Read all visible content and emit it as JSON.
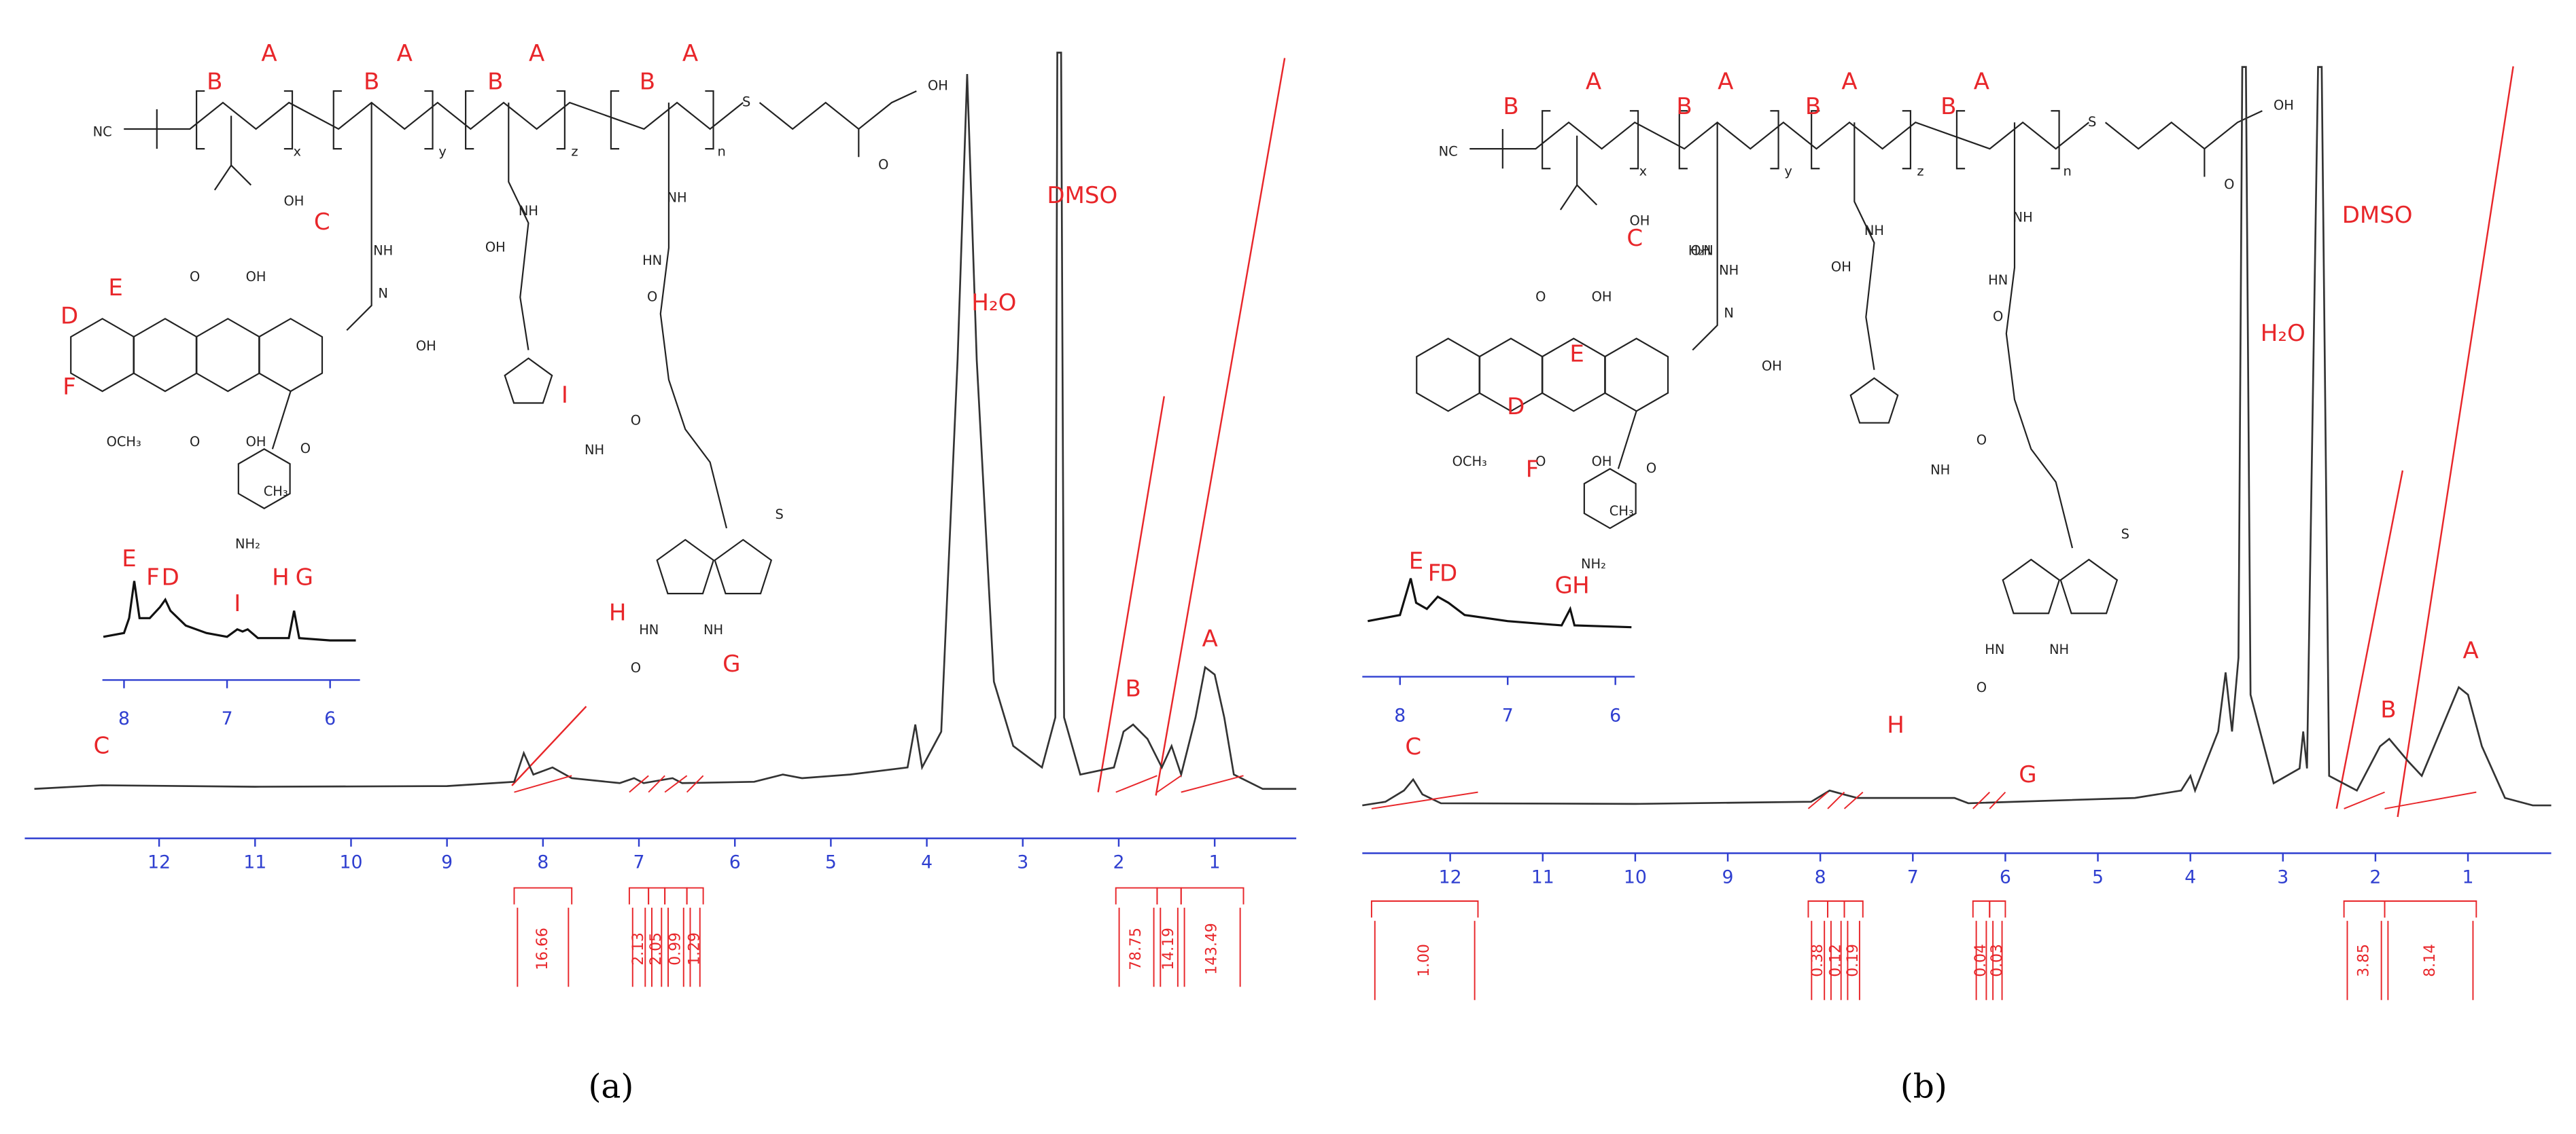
{
  "chart_data": [
    {
      "type": "line",
      "caption": "(a)",
      "xlim": [
        13.4,
        0.15
      ],
      "xticks": [
        12,
        11,
        10,
        9,
        8,
        7,
        6,
        5,
        4,
        3,
        2,
        1
      ],
      "ylim": [
        0,
        105
      ],
      "series": [
        {
          "name": "spectrum",
          "color": "#333333",
          "x": [
            13.3,
            12.6,
            11,
            9,
            8.3,
            8.2,
            8.1,
            7.9,
            7.7,
            7.2,
            7.05,
            6.95,
            6.65,
            6.55,
            5.8,
            5.5,
            5.3,
            4.8,
            4.2,
            4.12,
            4.05,
            3.85,
            3.68,
            3.58,
            3.48,
            3.3,
            3.1,
            2.8,
            2.66,
            2.64,
            2.6,
            2.57,
            2.4,
            2.05,
            1.95,
            1.85,
            1.7,
            1.55,
            1.45,
            1.35,
            1.2,
            1.1,
            1.0,
            0.9,
            0.8,
            0.5,
            0.15
          ],
          "values": [
            0,
            0.5,
            0.3,
            0.4,
            1,
            5,
            2,
            3,
            1.5,
            0.8,
            1.5,
            0.8,
            1.5,
            0.8,
            1,
            2,
            1.5,
            2,
            3,
            9,
            3,
            8,
            60,
            100,
            60,
            15,
            6,
            3,
            10,
            103,
            103,
            10,
            2,
            3,
            8,
            9,
            7,
            3,
            6,
            2,
            10,
            17,
            16,
            10,
            2,
            0,
            0
          ]
        }
      ],
      "annotations": [
        {
          "text": "C",
          "x": 12.6,
          "y": 4
        },
        {
          "text": "B",
          "x": 1.85,
          "y": 12
        },
        {
          "text": "A",
          "x": 1.05,
          "y": 19
        },
        {
          "text": "H₂O",
          "x": 3.3,
          "y": 66
        },
        {
          "text": "DMSO",
          "x": 2.38,
          "y": 81
        }
      ],
      "integrals": {
        "ranges": [
          [
            8.3,
            7.7
          ],
          [
            7.1,
            6.9
          ],
          [
            6.9,
            6.73
          ],
          [
            6.73,
            6.5
          ],
          [
            6.5,
            6.33
          ],
          [
            2.03,
            1.6
          ],
          [
            1.6,
            1.35
          ],
          [
            1.35,
            0.7
          ]
        ],
        "values": [
          16.66,
          2.13,
          2.05,
          0.99,
          1.29,
          78.75,
          14.19,
          143.49
        ]
      },
      "inset": {
        "xlim": [
          8.21,
          5.71
        ],
        "xticks": [
          8,
          7,
          6
        ],
        "ylim": [
          0,
          10
        ],
        "x": [
          8.2,
          8.0,
          7.95,
          7.9,
          7.85,
          7.75,
          7.65,
          7.6,
          7.55,
          7.4,
          7.2,
          7.0,
          6.9,
          6.85,
          6.8,
          6.7,
          6.4,
          6.35,
          6.3,
          6.0,
          5.75
        ],
        "values": [
          0.5,
          1,
          3,
          8,
          3,
          3,
          4.5,
          5.5,
          4,
          2,
          1,
          0.5,
          1.5,
          1.2,
          1.5,
          0.3,
          0.3,
          4,
          0.3,
          0,
          0
        ],
        "annotations": [
          {
            "text": "E",
            "x": 7.95,
            "y": 9.5
          },
          {
            "text": "F",
            "x": 7.72,
            "y": 7
          },
          {
            "text": "D",
            "x": 7.55,
            "y": 7
          },
          {
            "text": "I",
            "x": 6.9,
            "y": 3.5
          },
          {
            "text": "H",
            "x": 6.48,
            "y": 7
          },
          {
            "text": "G",
            "x": 6.25,
            "y": 7
          }
        ]
      },
      "structure": {
        "labels": [
          "B",
          "A",
          "B",
          "A",
          "B",
          "A",
          "B",
          "A",
          "C",
          "E",
          "D",
          "F",
          "I",
          "H",
          "G"
        ],
        "atoms": [
          "NC",
          "x",
          "y",
          "z",
          "n",
          "S",
          "OH",
          "O",
          "OH",
          "NH",
          "N",
          "OH",
          "NH",
          "NH",
          "NH",
          "HN",
          "O",
          "O",
          "OCH₃",
          "NH₂",
          "CH₃",
          "O",
          "S",
          "HN",
          "NH",
          "O",
          "OH",
          "OH",
          "O",
          "O",
          "OH",
          "OH"
        ]
      }
    },
    {
      "type": "line",
      "caption": "(b)",
      "xlim": [
        12.95,
        0.1
      ],
      "xticks": [
        12,
        11,
        10,
        9,
        8,
        7,
        6,
        5,
        4,
        3,
        2,
        1
      ],
      "ylim": [
        0,
        105
      ],
      "series": [
        {
          "name": "spectrum",
          "color": "#333333",
          "x": [
            12.95,
            12.7,
            12.5,
            12.4,
            12.3,
            12.1,
            10,
            8.1,
            7.9,
            7.75,
            7.6,
            6.55,
            6.4,
            4.6,
            4.1,
            4.0,
            3.95,
            3.7,
            3.62,
            3.55,
            3.48,
            3.44,
            3.4,
            3.35,
            3.1,
            2.82,
            2.78,
            2.74,
            2.62,
            2.58,
            2.5,
            2.2,
            1.95,
            1.85,
            1.65,
            1.5,
            1.3,
            1.1,
            1.0,
            0.85,
            0.6,
            0.3,
            0.1
          ],
          "values": [
            0,
            0.5,
            2,
            3.5,
            1.5,
            0.3,
            0.2,
            0.5,
            2,
            1.5,
            1,
            1,
            0.3,
            1,
            2,
            4,
            2,
            10,
            18,
            10,
            20,
            100,
            100,
            15,
            3,
            5,
            10,
            5,
            100,
            100,
            4,
            2,
            8,
            9,
            6,
            4,
            10,
            16,
            15,
            8,
            1,
            0,
            0
          ]
        }
      ],
      "annotations": [
        {
          "text": "C",
          "x": 12.4,
          "y": 6
        },
        {
          "text": "B",
          "x": 1.86,
          "y": 11
        },
        {
          "text": "A",
          "x": 0.97,
          "y": 19
        },
        {
          "text": "H₂O",
          "x": 3.0,
          "y": 62
        },
        {
          "text": "DMSO",
          "x": 1.98,
          "y": 78
        }
      ],
      "integrals": {
        "ranges": [
          [
            12.85,
            11.7
          ],
          [
            8.13,
            7.92
          ],
          [
            7.92,
            7.74
          ],
          [
            7.74,
            7.54
          ],
          [
            6.35,
            6.17
          ],
          [
            6.17,
            6.0
          ],
          [
            2.34,
            1.9
          ],
          [
            1.9,
            0.91
          ]
        ],
        "values": [
          1,
          0.38,
          0.12,
          0.19,
          0.04,
          0.03,
          3.85,
          8.14
        ],
        "value_labels": [
          "1.00",
          "0.38",
          "0.12",
          "0.19",
          "0.04",
          "0.03",
          "3.85",
          "8.14"
        ]
      },
      "inset": {
        "xlim": [
          8.35,
          5.82
        ],
        "xticks": [
          8,
          7,
          6
        ],
        "ylim": [
          0,
          10
        ],
        "x": [
          8.3,
          8.0,
          7.9,
          7.85,
          7.75,
          7.65,
          7.55,
          7.4,
          7.0,
          6.5,
          6.42,
          6.38,
          5.85
        ],
        "values": [
          1,
          2,
          8,
          4,
          3,
          5,
          4,
          2,
          1,
          0.3,
          3,
          0.3,
          0
        ],
        "annotations": [
          {
            "text": "E",
            "x": 7.85,
            "y": 9
          },
          {
            "text": "F",
            "x": 7.68,
            "y": 7
          },
          {
            "text": "D",
            "x": 7.55,
            "y": 7
          },
          {
            "text": "G",
            "x": 6.48,
            "y": 5
          },
          {
            "text": "H",
            "x": 6.32,
            "y": 5
          }
        ]
      },
      "structure": {
        "labels": [
          "B",
          "A",
          "B",
          "A",
          "B",
          "A",
          "B",
          "A",
          "C",
          "E",
          "D",
          "F",
          "H",
          "G"
        ],
        "atoms": [
          "NC",
          "x",
          "y",
          "z",
          "n",
          "S",
          "OH",
          "O",
          "OH",
          "NH",
          "N",
          "OH",
          "NH",
          "NH",
          "NH",
          "HN",
          "O",
          "O",
          "OCH₃",
          "NH₂",
          "CH₃",
          "O",
          "S",
          "HN",
          "NH",
          "O",
          "OH",
          "OH",
          "O",
          "O",
          "OH",
          "H₂N"
        ]
      }
    }
  ]
}
